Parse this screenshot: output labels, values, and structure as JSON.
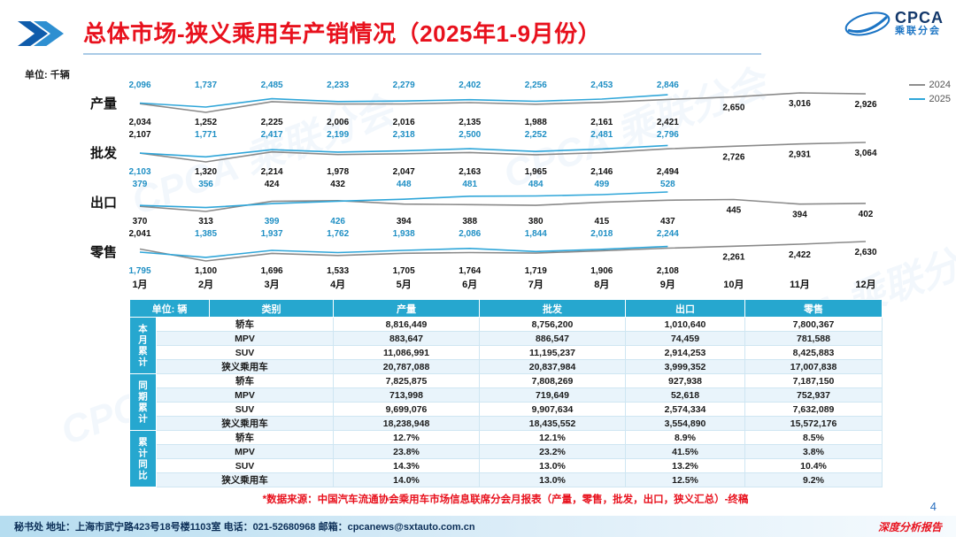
{
  "header": {
    "title": "总体市场-狭义乘用车产销情况（2025年1-9月份）"
  },
  "logo": {
    "brand": "CPCA",
    "sub": "乘联分会"
  },
  "chart_unit": "单位: 千辆",
  "legend": [
    {
      "label": "2024",
      "color": "#8f8f8f"
    },
    {
      "label": "2025",
      "color": "#2fa6d9"
    }
  ],
  "months": [
    "1月",
    "2月",
    "3月",
    "4月",
    "5月",
    "6月",
    "7月",
    "8月",
    "9月",
    "10月",
    "11月",
    "12月"
  ],
  "chart_data": [
    {
      "type": "line",
      "name": "产量",
      "unit": "千辆",
      "categories": [
        "1月",
        "2月",
        "3月",
        "4月",
        "5月",
        "6月",
        "7月",
        "8月",
        "9月",
        "10月",
        "11月",
        "12月"
      ],
      "series": [
        {
          "name": "2024",
          "values": [
            2034,
            1252,
            2225,
            2006,
            2016,
            2135,
            1988,
            2161,
            2421,
            2650,
            3016,
            2926
          ]
        },
        {
          "name": "2025",
          "values": [
            2096,
            1737,
            2485,
            2233,
            2279,
            2402,
            2256,
            2453,
            2846
          ]
        }
      ]
    },
    {
      "type": "line",
      "name": "批发",
      "unit": "千辆",
      "categories": [
        "1月",
        "2月",
        "3月",
        "4月",
        "5月",
        "6月",
        "7月",
        "8月",
        "9月",
        "10月",
        "11月",
        "12月"
      ],
      "series": [
        {
          "name": "2024",
          "values": [
            2107,
            1320,
            2214,
            1978,
            2047,
            2163,
            1965,
            2146,
            2494,
            2726,
            2931,
            3064
          ]
        },
        {
          "name": "2025",
          "values": [
            2103,
            1771,
            2417,
            2199,
            2318,
            2500,
            2252,
            2481,
            2796
          ]
        }
      ]
    },
    {
      "type": "line",
      "name": "出口",
      "unit": "千辆",
      "categories": [
        "1月",
        "2月",
        "3月",
        "4月",
        "5月",
        "6月",
        "7月",
        "8月",
        "9月",
        "10月",
        "11月",
        "12月"
      ],
      "series": [
        {
          "name": "2024",
          "values": [
            370,
            313,
            424,
            432,
            394,
            388,
            380,
            415,
            437,
            445,
            394,
            402
          ]
        },
        {
          "name": "2025",
          "values": [
            379,
            356,
            399,
            426,
            448,
            481,
            484,
            499,
            528
          ]
        }
      ]
    },
    {
      "type": "line",
      "name": "零售",
      "unit": "千辆",
      "categories": [
        "1月",
        "2月",
        "3月",
        "4月",
        "5月",
        "6月",
        "7月",
        "8月",
        "9月",
        "10月",
        "11月",
        "12月"
      ],
      "series": [
        {
          "name": "2024",
          "values": [
            2041,
            1100,
            1696,
            1533,
            1705,
            1764,
            1719,
            1906,
            2108,
            2261,
            2422,
            2630
          ]
        },
        {
          "name": "2025",
          "values": [
            1795,
            1385,
            1937,
            1762,
            1938,
            2086,
            1844,
            2018,
            2244
          ]
        }
      ]
    }
  ],
  "table": {
    "unit_header": "单位: 辆",
    "col_headers": [
      "类别",
      "产量",
      "批发",
      "出口",
      "零售"
    ],
    "groups": [
      {
        "label": "本月累计",
        "rows": [
          {
            "category": "轿车",
            "values": [
              "8,816,449",
              "8,756,200",
              "1,010,640",
              "7,800,367"
            ]
          },
          {
            "category": "MPV",
            "values": [
              "883,647",
              "886,547",
              "74,459",
              "781,588"
            ]
          },
          {
            "category": "SUV",
            "values": [
              "11,086,991",
              "11,195,237",
              "2,914,253",
              "8,425,883"
            ]
          },
          {
            "category": "狭义乘用车",
            "values": [
              "20,787,088",
              "20,837,984",
              "3,999,352",
              "17,007,838"
            ]
          }
        ]
      },
      {
        "label": "同期累计",
        "rows": [
          {
            "category": "轿车",
            "values": [
              "7,825,875",
              "7,808,269",
              "927,938",
              "7,187,150"
            ]
          },
          {
            "category": "MPV",
            "values": [
              "713,998",
              "719,649",
              "52,618",
              "752,937"
            ]
          },
          {
            "category": "SUV",
            "values": [
              "9,699,076",
              "9,907,634",
              "2,574,334",
              "7,632,089"
            ]
          },
          {
            "category": "狭义乘用车",
            "values": [
              "18,238,948",
              "18,435,552",
              "3,554,890",
              "15,572,176"
            ]
          }
        ]
      },
      {
        "label": "累计同比",
        "rows": [
          {
            "category": "轿车",
            "values": [
              "12.7%",
              "12.1%",
              "8.9%",
              "8.5%"
            ]
          },
          {
            "category": "MPV",
            "values": [
              "23.8%",
              "23.2%",
              "41.5%",
              "3.8%"
            ]
          },
          {
            "category": "SUV",
            "values": [
              "14.3%",
              "13.0%",
              "13.2%",
              "10.4%"
            ]
          },
          {
            "category": "狭义乘用车",
            "values": [
              "14.0%",
              "13.0%",
              "12.5%",
              "9.2%"
            ]
          }
        ]
      }
    ]
  },
  "footnote": "*数据来源：中国汽车流通协会乘用车市场信息联席分会月报表（产量，零售，批发，出口，狭义汇总）-终稿",
  "page_number": "4",
  "footer": {
    "left": "秘书处  地址：上海市武宁路423号18号楼1103室  电话：021-52680968  邮箱：cpcanews@sxtauto.com.cn",
    "right": "深度分析报告"
  },
  "watermark": "CPCA 乘联分会",
  "colors": {
    "line_2024": "#8a8a8a",
    "line_2025": "#2fa6d9",
    "label_2024": "#111111",
    "label_2025": "#1f8fc4",
    "accent_red": "#e8111d",
    "table_header": "#26a7cf"
  }
}
